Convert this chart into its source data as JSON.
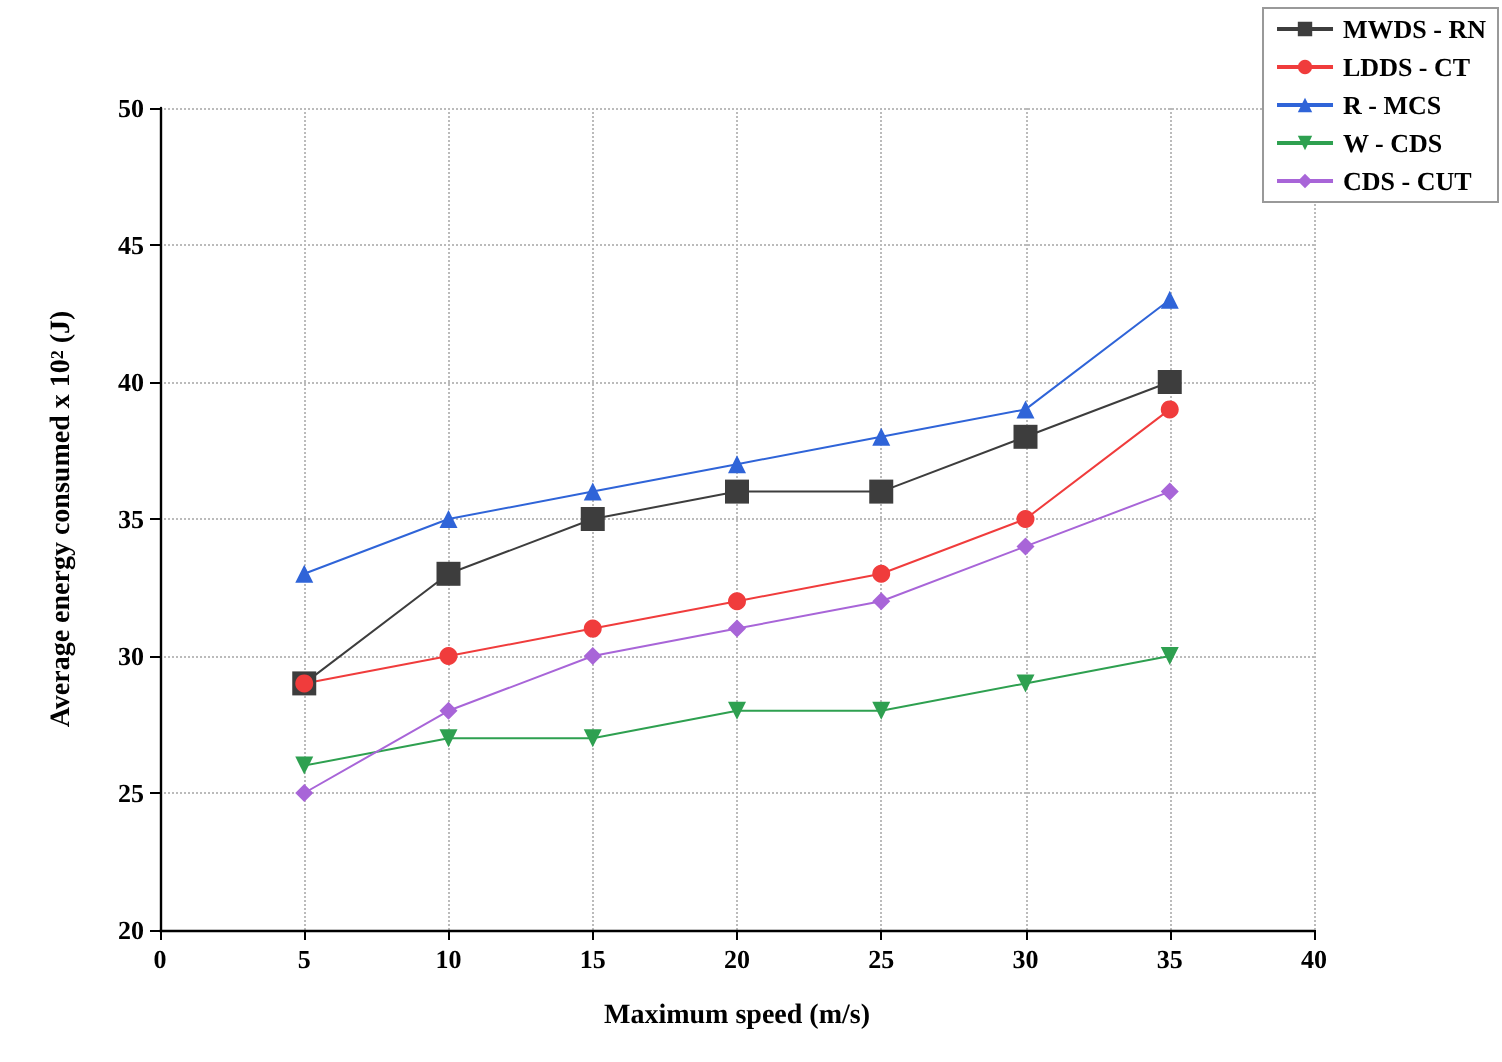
{
  "chart_data": {
    "type": "line",
    "xlabel": "Maximum speed (m/s)",
    "ylabel": "Average energy consumed x 10$^{2}$ (J)",
    "x": [
      5,
      10,
      15,
      20,
      25,
      30,
      35
    ],
    "xlim": [
      0,
      40
    ],
    "xticks": [
      0,
      5,
      10,
      15,
      20,
      25,
      30,
      35,
      40
    ],
    "ylim": [
      20,
      50
    ],
    "yticks": [
      20,
      25,
      30,
      35,
      40,
      45,
      50
    ],
    "grid": true,
    "legend": "top right",
    "line_style": "solid",
    "series": [
      {
        "name": "MWDS - RN",
        "color": "#3d3d3d",
        "marker": "square",
        "values": [
          29,
          33,
          35,
          36,
          36,
          38,
          40
        ]
      },
      {
        "name": "LDDS - CT",
        "color": "#f03c3c",
        "marker": "circle",
        "values": [
          29,
          30,
          31,
          32,
          33,
          35,
          39
        ]
      },
      {
        "name": "R - MCS",
        "color": "#2f64d8",
        "marker": "triangle",
        "values": [
          33,
          35,
          36,
          37,
          38,
          39,
          43
        ]
      },
      {
        "name": "W - CDS",
        "color": "#2ea050",
        "marker": "triangle-down",
        "values": [
          26,
          27,
          27,
          28,
          28,
          29,
          30
        ]
      },
      {
        "name": "CDS - CUT",
        "color": "#a865d8",
        "marker": "diamond",
        "values": [
          25,
          28,
          30,
          31,
          32,
          34,
          36
        ]
      }
    ]
  }
}
